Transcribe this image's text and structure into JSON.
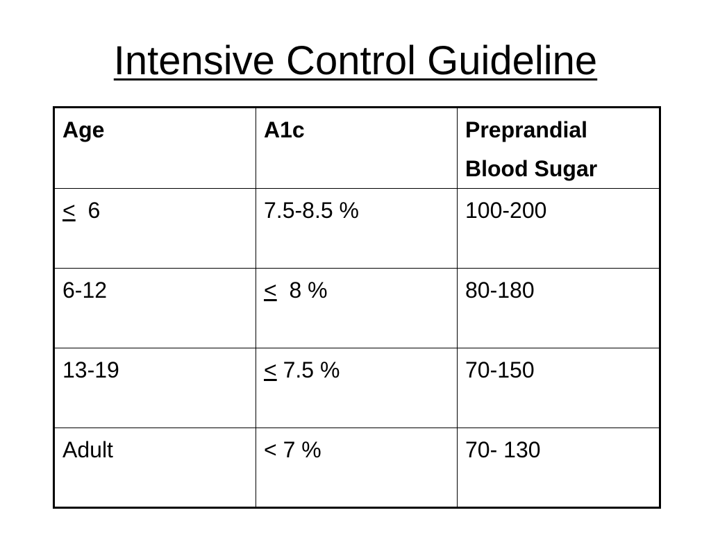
{
  "title": "Intensive Control Guideline",
  "table": {
    "headers": [
      "Age",
      "A1c",
      "Preprandial Blood Sugar"
    ],
    "rows": [
      {
        "age": {
          "sym": "<",
          "text": "  6"
        },
        "a1c": {
          "text": "7.5-8.5 %"
        },
        "sugar": "100-200"
      },
      {
        "age": {
          "text": "6-12"
        },
        "a1c": {
          "sym": "<",
          "text": "  8 %"
        },
        "sugar": "80-180"
      },
      {
        "age": {
          "text": "13-19"
        },
        "a1c": {
          "sym": "<",
          "text": " 7.5 %"
        },
        "sugar": "70-150"
      },
      {
        "age": {
          "text": "Adult"
        },
        "a1c": {
          "text": "< 7 %"
        },
        "sugar": "70- 130"
      }
    ]
  }
}
